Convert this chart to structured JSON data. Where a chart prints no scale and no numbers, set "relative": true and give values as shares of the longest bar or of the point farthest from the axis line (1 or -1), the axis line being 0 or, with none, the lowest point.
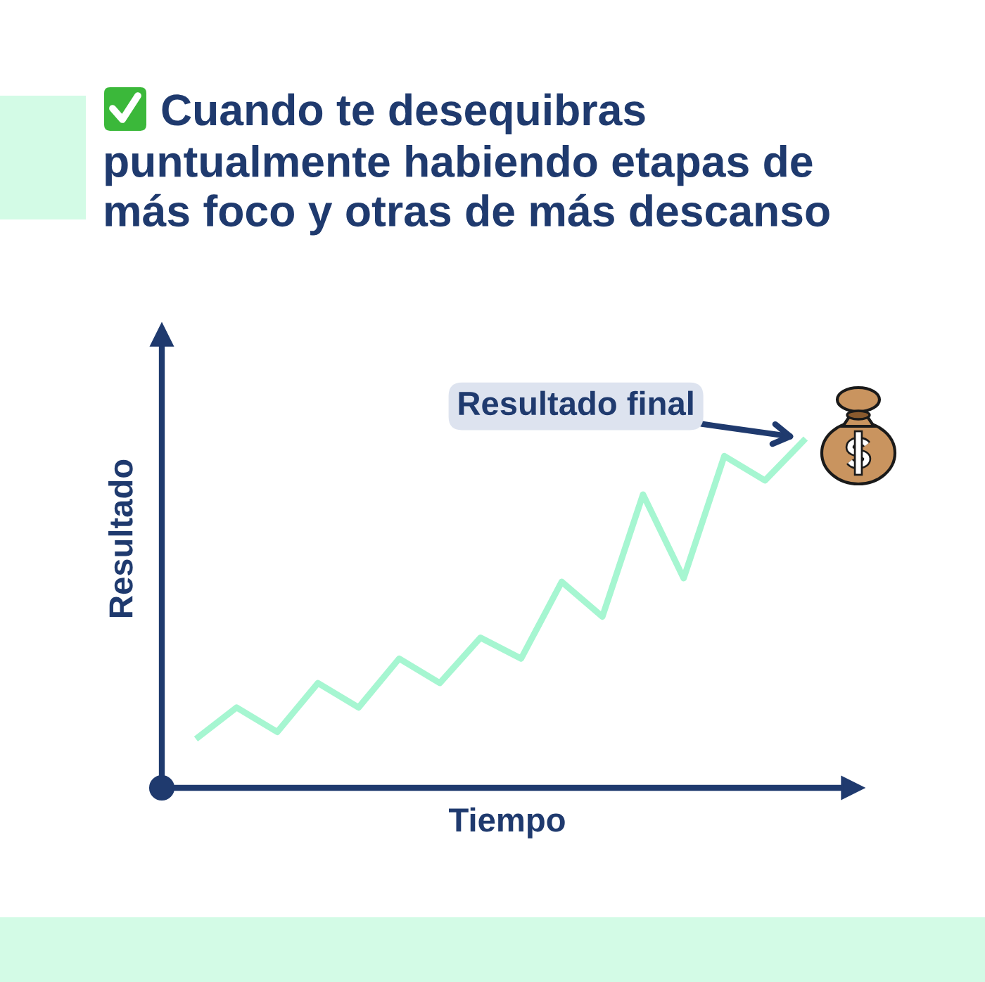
{
  "chart_data": {
    "type": "line",
    "title": "Cuando te desequibras\npuntualmente habiendo etapas de\nmás foco y otras de más descanso",
    "xlabel": "Tiempo",
    "ylabel": "Resultado",
    "categories": [
      null,
      null,
      null,
      null,
      null,
      null,
      null,
      null,
      null,
      null,
      null,
      null,
      null,
      null,
      null,
      null
    ],
    "series": [
      {
        "color": "#a6f6d1",
        "values": [
          0.14,
          0.23,
          0.16,
          0.3,
          0.23,
          0.37,
          0.3,
          0.43,
          0.37,
          0.59,
          0.49,
          0.84,
          0.6,
          0.95,
          0.88,
          1
        ]
      }
    ],
    "relative": true,
    "line_style": "solid",
    "annotations": [
      "Resultado final"
    ]
  }
}
